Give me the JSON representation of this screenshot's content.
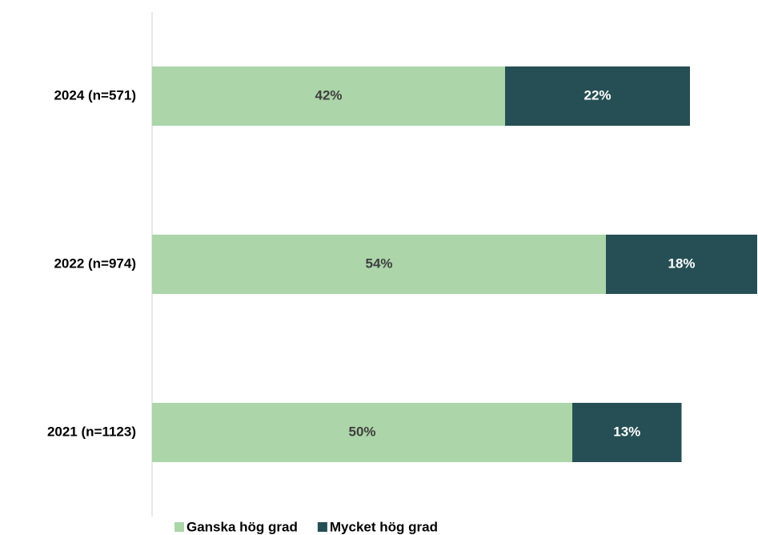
{
  "chart_data": {
    "type": "bar",
    "orientation": "horizontal",
    "stacked": true,
    "categories": [
      "2024 (n=571)",
      "2022 (n=974)",
      "2021 (n=1123)"
    ],
    "series": [
      {
        "name": "Ganska hög grad",
        "color": "#acd5a9",
        "values": [
          42,
          54,
          50
        ],
        "value_labels": [
          "42%",
          "54%",
          "50%"
        ]
      },
      {
        "name": "Mycket hög grad",
        "color": "#264f55",
        "values": [
          22,
          18,
          13
        ],
        "value_labels": [
          "22%",
          "18%",
          "13%"
        ]
      }
    ],
    "legend": "bottom"
  }
}
